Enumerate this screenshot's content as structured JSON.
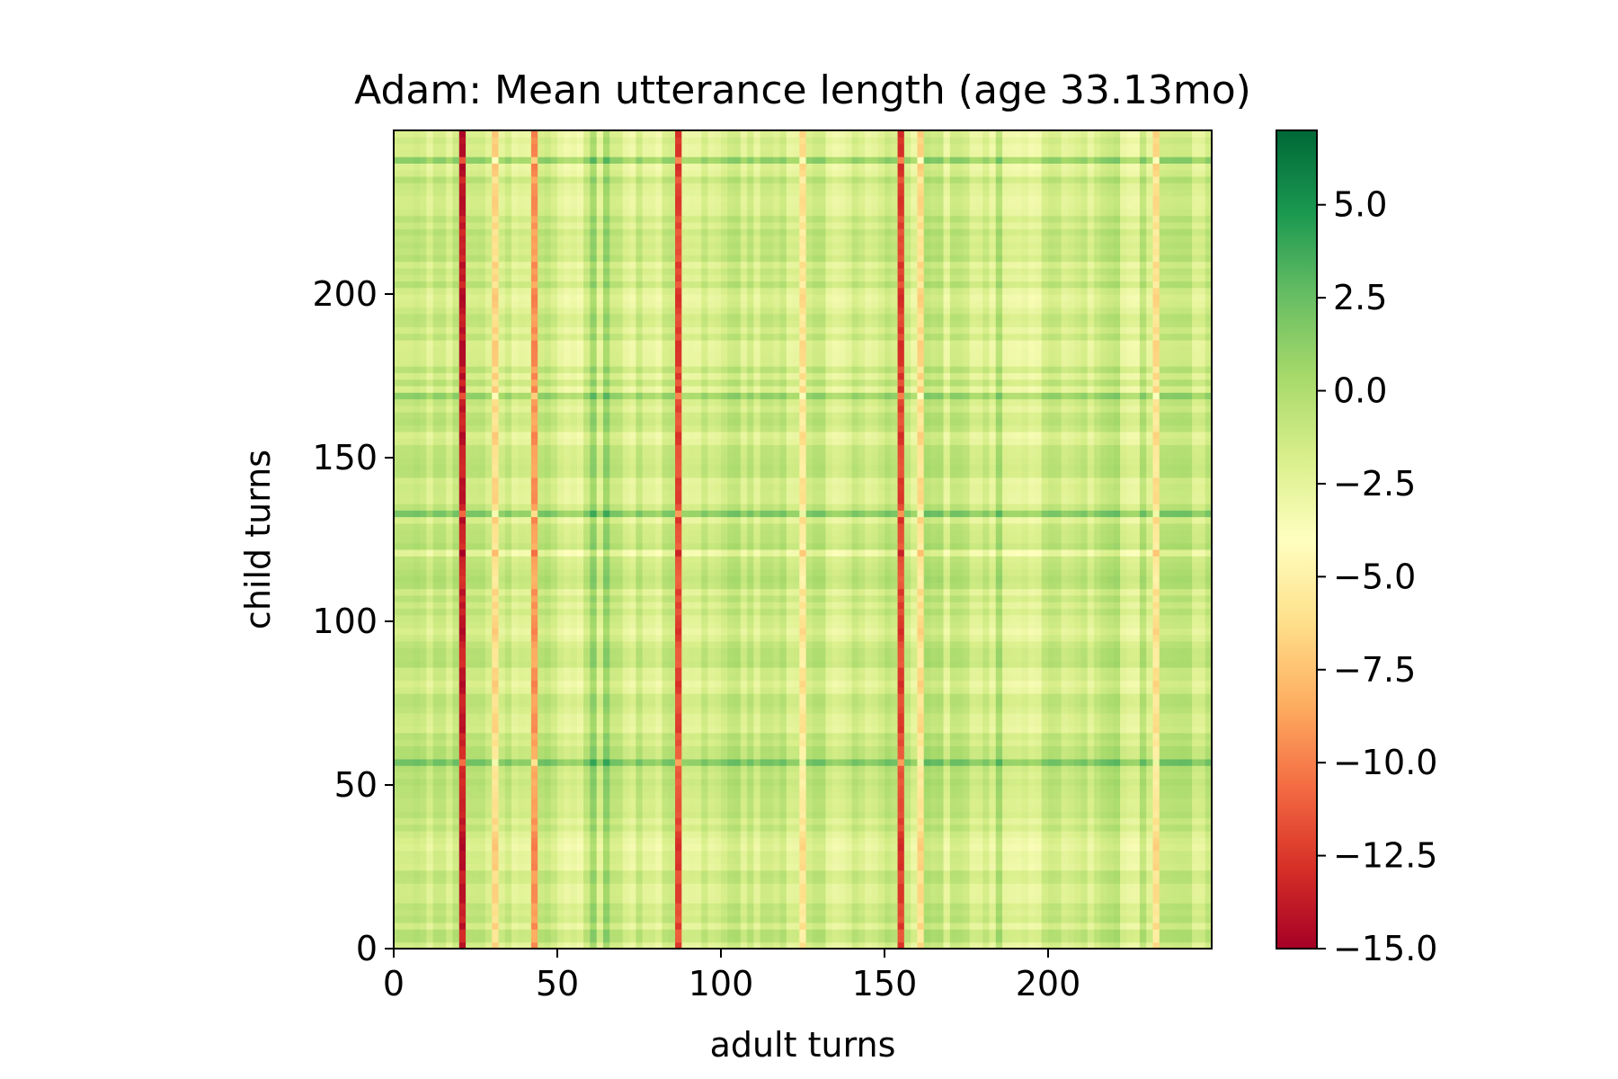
{
  "chart_data": {
    "type": "heatmap",
    "title": "Adam: Mean utterance length (age 33.13mo)",
    "xlabel": "adult turns",
    "ylabel": "child turns",
    "xlim": [
      0,
      250
    ],
    "ylim": [
      0,
      250
    ],
    "xticks": [
      0,
      50,
      100,
      150,
      200
    ],
    "yticks": [
      0,
      50,
      100,
      150,
      200
    ],
    "xtick_labels": [
      "0",
      "50",
      "100",
      "150",
      "200"
    ],
    "ytick_labels": [
      "0",
      "50",
      "100",
      "150",
      "200"
    ],
    "colormap": "RdYlGn",
    "colormap_stops": [
      "#a50026",
      "#d73027",
      "#f46d43",
      "#fdae61",
      "#fee08b",
      "#ffffbf",
      "#d9ef8b",
      "#a6d96a",
      "#66bd63",
      "#1a9850",
      "#006837"
    ],
    "color_range": [
      -15.0,
      7.0
    ],
    "colorbar": {
      "ticks": [
        5.0,
        2.5,
        0.0,
        -2.5,
        -5.0,
        -7.5,
        -10.0,
        -12.5,
        -15.0
      ],
      "tick_labels": [
        "5.0",
        "2.5",
        "0.0",
        "−2.5",
        "−5.0",
        "−7.5",
        "−10.0",
        "−12.5",
        "−15.0"
      ]
    },
    "description": "Values are approximately additive: cell(x, y) = column_effect(x) + row_effect(y) + baseline",
    "baseline": -1.5,
    "column_effects": [
      {
        "x": 20,
        "value": -12.5
      },
      {
        "x": 87,
        "value": -10.0
      },
      {
        "x": 154,
        "value": -10.5
      },
      {
        "x": 43,
        "value": -7.0
      },
      {
        "x": 31,
        "value": -5.0
      },
      {
        "x": 161,
        "value": -5.5
      },
      {
        "x": 125,
        "value": -4.5
      },
      {
        "x": 233,
        "value": -5.0
      },
      {
        "x": 60,
        "value": 2.0
      },
      {
        "x": 65,
        "value": 2.0
      },
      {
        "x": 185,
        "value": 1.5
      }
    ],
    "row_effects": [
      {
        "y": 132,
        "value": 3.5
      },
      {
        "y": 56,
        "value": 3.0
      },
      {
        "y": 169,
        "value": 2.5
      },
      {
        "y": 120,
        "value": -2.0
      },
      {
        "y": 240,
        "value": 2.0
      }
    ]
  }
}
